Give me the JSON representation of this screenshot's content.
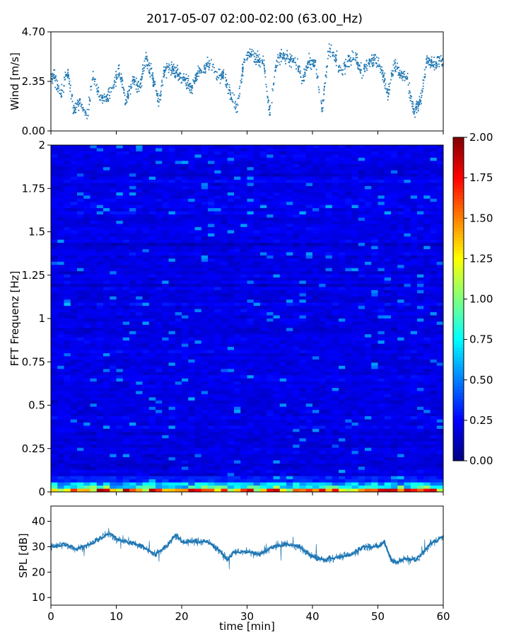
{
  "title": "2017-05-07 02:00-02:00 (63.00_Hz)",
  "chart_data": [
    {
      "type": "scatter",
      "ylabel": "Wind [m/s]",
      "xlim": [
        0,
        60
      ],
      "ylim": [
        0,
        4.7
      ],
      "yticks": [
        "0.00",
        "2.35",
        "4.70"
      ],
      "color": "#1f77b4",
      "series": [
        {
          "x": [
            0.5,
            1.5,
            2.5,
            3.5,
            4.5,
            5.5,
            6.5,
            7.5,
            8.5,
            9.5,
            10.5,
            11.5,
            12.5,
            13.5,
            14.5,
            15.5,
            16.5,
            17.5,
            18.5,
            19.5,
            20.5,
            21.5,
            22.5,
            23.5,
            24.5,
            25.5,
            26.5,
            27.5,
            28.5,
            29.5,
            30.5,
            31.5,
            32.5,
            33.5,
            34.5,
            35.5,
            36.5,
            37.5,
            38.5,
            39.5,
            40.5,
            41.5,
            42.5,
            43.5,
            44.5,
            45.5,
            46.5,
            47.5,
            48.5,
            49.5,
            50.5,
            51.5,
            52.5,
            53.5,
            54.5,
            55.5,
            56.5,
            57.5,
            58.5,
            59.5
          ],
          "y": [
            2.6,
            1.6,
            2.9,
            1.0,
            1.4,
            0.6,
            2.7,
            1.6,
            1.5,
            2.0,
            2.9,
            1.3,
            2.4,
            2.0,
            3.4,
            2.7,
            1.4,
            2.9,
            3.0,
            2.7,
            2.4,
            2.0,
            2.8,
            3.0,
            3.2,
            2.5,
            2.7,
            1.6,
            1.1,
            3.3,
            3.7,
            3.4,
            3.3,
            0.8,
            3.3,
            3.6,
            3.4,
            3.3,
            2.4,
            3.3,
            3.1,
            1.0,
            3.9,
            3.5,
            2.8,
            3.4,
            3.6,
            2.8,
            3.2,
            3.4,
            3.1,
            1.7,
            3.2,
            2.7,
            2.5,
            0.9,
            1.4,
            3.4,
            3.1,
            3.3
          ]
        }
      ]
    },
    {
      "type": "heatmap",
      "ylabel": "FFT Frequenz [Hz]",
      "xlim": [
        0,
        60
      ],
      "ylim": [
        0,
        2
      ],
      "yticks": [
        "0",
        "0.25",
        "0.5",
        "0.75",
        "1",
        "1.25",
        "1.5",
        "1.75",
        "2"
      ],
      "colorbar": {
        "range": [
          0,
          2
        ],
        "ticks": [
          "0.00",
          "0.25",
          "0.50",
          "0.75",
          "1.00",
          "1.25",
          "1.50",
          "1.75",
          "2.00"
        ],
        "colormap": "jet"
      },
      "description_values": {
        "typical_level": 0.2,
        "low_frequency_band_level": 0.8,
        "lowest_bin_max": 2.0
      }
    },
    {
      "type": "line",
      "ylabel": "SPL [dB]",
      "xlabel": "time [min]",
      "xlim": [
        0,
        60
      ],
      "ylim": [
        7,
        46
      ],
      "yticks": [
        "10",
        "20",
        "30",
        "40"
      ],
      "xticks": [
        "0",
        "10",
        "20",
        "30",
        "40",
        "50",
        "60"
      ],
      "color": "#1f77b4",
      "series": [
        {
          "x": [
            0,
            2,
            4,
            6,
            8,
            9,
            10,
            12,
            14,
            16,
            18,
            19,
            20,
            22,
            24,
            26,
            27,
            28,
            30,
            32,
            34,
            36,
            38,
            40,
            42,
            44,
            46,
            48,
            50,
            51,
            52,
            53,
            54,
            56,
            58,
            60
          ],
          "y": [
            30,
            31,
            29,
            31,
            34,
            35,
            33,
            32,
            30,
            27,
            31,
            35,
            32,
            32,
            32,
            28,
            25,
            28,
            28,
            27,
            30,
            31,
            30,
            26,
            25,
            26,
            27,
            30,
            30,
            32,
            25,
            24,
            25,
            25,
            31,
            34
          ]
        }
      ]
    }
  ]
}
